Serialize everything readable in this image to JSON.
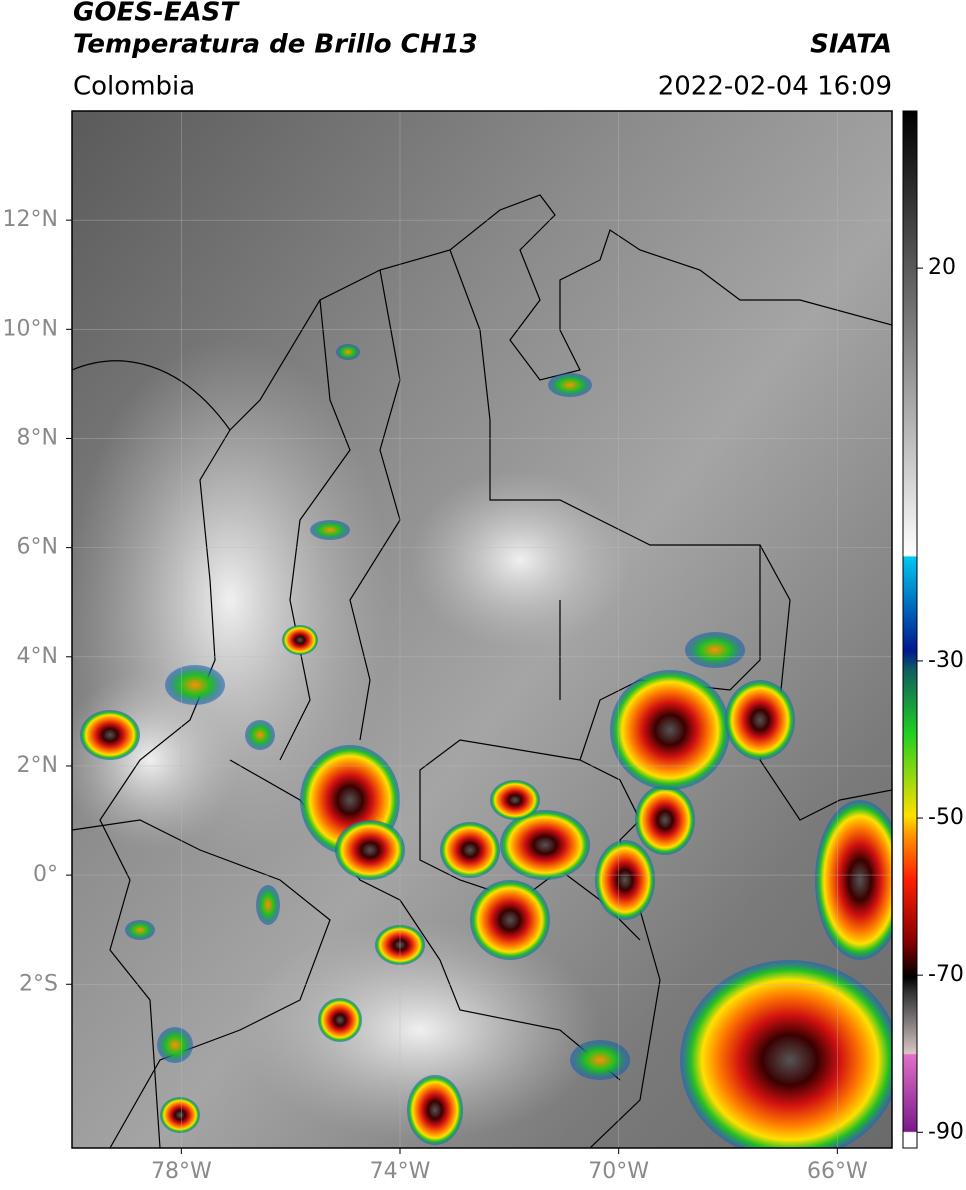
{
  "header": {
    "title": "GOES-EAST",
    "subtitle": "Temperatura de Brillo CH13",
    "source": "SIATA",
    "region": "Colombia",
    "datetime": "2022-02-04 16:09"
  },
  "map": {
    "xlim": [
      -80,
      -65
    ],
    "ylim": [
      -5,
      14
    ],
    "xticks": [
      {
        "value": -78,
        "label": "78°W"
      },
      {
        "value": -74,
        "label": "74°W"
      },
      {
        "value": -70,
        "label": "70°W"
      },
      {
        "value": -66,
        "label": "66°W"
      }
    ],
    "yticks": [
      {
        "value": 12,
        "label": "12°N"
      },
      {
        "value": 10,
        "label": "10°N"
      },
      {
        "value": 8,
        "label": "8°N"
      },
      {
        "value": 6,
        "label": "6°N"
      },
      {
        "value": 4,
        "label": "4°N"
      },
      {
        "value": 2,
        "label": "2°N"
      },
      {
        "value": 0,
        "label": "0°"
      },
      {
        "value": -2,
        "label": "2°S"
      }
    ],
    "grid": true
  },
  "colorbar": {
    "lim": [
      -92,
      40
    ],
    "ticks": [
      20,
      -30,
      -50,
      -70,
      -90
    ]
  }
}
